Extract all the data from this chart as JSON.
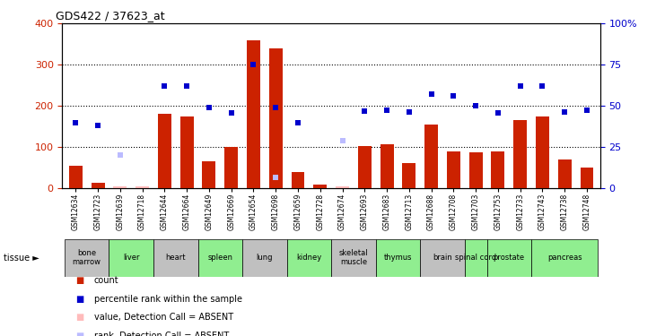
{
  "title": "GDS422 / 37623_at",
  "samples": [
    "GSM12634",
    "GSM12723",
    "GSM12639",
    "GSM12718",
    "GSM12644",
    "GSM12664",
    "GSM12649",
    "GSM12669",
    "GSM12654",
    "GSM12698",
    "GSM12659",
    "GSM12728",
    "GSM12674",
    "GSM12693",
    "GSM12683",
    "GSM12713",
    "GSM12688",
    "GSM12708",
    "GSM12703",
    "GSM12753",
    "GSM12733",
    "GSM12743",
    "GSM12738",
    "GSM12748"
  ],
  "count_values": [
    55,
    12,
    5,
    5,
    180,
    175,
    65,
    100,
    360,
    340,
    40,
    8,
    5,
    102,
    107,
    60,
    155,
    90,
    88,
    90,
    165,
    175,
    70,
    50
  ],
  "rank_values": [
    160,
    152,
    null,
    null,
    248,
    248,
    195,
    182,
    300,
    195,
    160,
    null,
    null,
    188,
    190,
    185,
    228,
    225,
    200,
    182,
    248,
    248,
    185,
    190
  ],
  "absent_count": [
    null,
    null,
    5,
    5,
    null,
    null,
    null,
    null,
    null,
    null,
    null,
    null,
    5,
    null,
    null,
    null,
    null,
    null,
    null,
    null,
    null,
    null,
    null,
    null
  ],
  "absent_rank": [
    null,
    null,
    80,
    null,
    null,
    null,
    null,
    null,
    null,
    27,
    null,
    null,
    115,
    null,
    null,
    null,
    null,
    null,
    null,
    null,
    null,
    null,
    null,
    null
  ],
  "tissues": [
    {
      "label": "bone\nmarrow",
      "start": 0,
      "end": 2,
      "color": "#c0c0c0"
    },
    {
      "label": "liver",
      "start": 2,
      "end": 4,
      "color": "#90ee90"
    },
    {
      "label": "heart",
      "start": 4,
      "end": 6,
      "color": "#c0c0c0"
    },
    {
      "label": "spleen",
      "start": 6,
      "end": 8,
      "color": "#90ee90"
    },
    {
      "label": "lung",
      "start": 8,
      "end": 10,
      "color": "#c0c0c0"
    },
    {
      "label": "kidney",
      "start": 10,
      "end": 12,
      "color": "#90ee90"
    },
    {
      "label": "skeletal\nmuscle",
      "start": 12,
      "end": 14,
      "color": "#c0c0c0"
    },
    {
      "label": "thymus",
      "start": 14,
      "end": 16,
      "color": "#90ee90"
    },
    {
      "label": "brain",
      "start": 16,
      "end": 18,
      "color": "#c0c0c0"
    },
    {
      "label": "spinal cord",
      "start": 18,
      "end": 19,
      "color": "#90ee90"
    },
    {
      "label": "prostate",
      "start": 19,
      "end": 21,
      "color": "#90ee90"
    },
    {
      "label": "pancreas",
      "start": 21,
      "end": 24,
      "color": "#90ee90"
    }
  ],
  "ylim_left": [
    0,
    400
  ],
  "ylim_right": [
    0,
    100
  ],
  "yticks_left": [
    0,
    100,
    200,
    300,
    400
  ],
  "yticks_right": [
    0,
    25,
    50,
    75,
    100
  ],
  "bar_color": "#cc2200",
  "rank_color": "#0000cc",
  "absent_count_color": "#ffbbbb",
  "absent_rank_color": "#bbbbff",
  "background_color": "#ffffff"
}
